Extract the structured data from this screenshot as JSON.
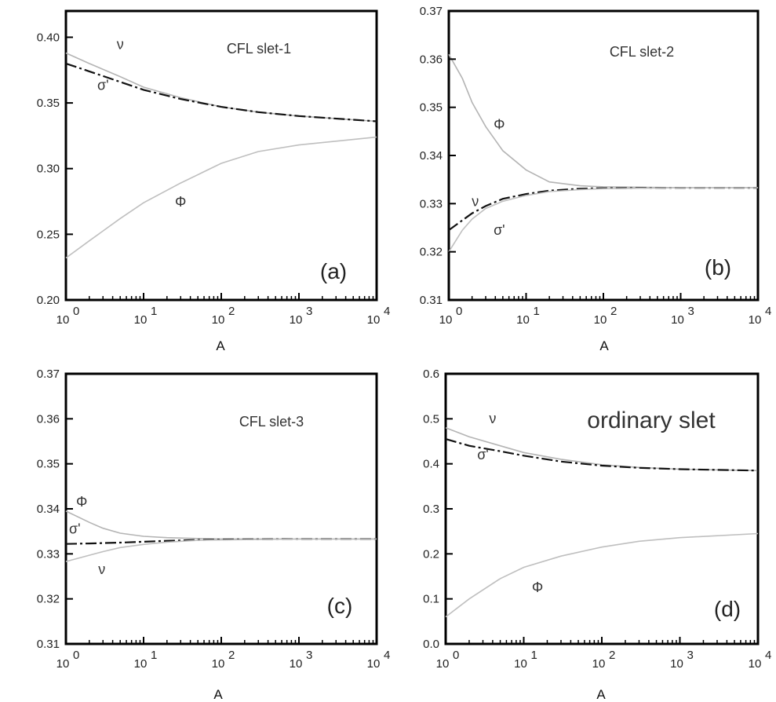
{
  "chart_data": [
    {
      "type": "line",
      "panel_label": "(a)",
      "title": "CFL slet-1",
      "xlabel": "A",
      "ylabel": "",
      "xscale": "log",
      "xlim": [
        1,
        10000
      ],
      "ylim": [
        0.2,
        0.42
      ],
      "x_ticks": [
        1,
        10,
        100,
        1000,
        10000
      ],
      "x_tick_labels": [
        "10",
        "10",
        "10",
        "10",
        "10"
      ],
      "x_tick_exponents": [
        "0",
        "1",
        "2",
        "3",
        "4"
      ],
      "y_ticks": [
        0.2,
        0.25,
        0.3,
        0.35,
        0.4
      ],
      "y_tick_labels": [
        "0.20",
        "0.25",
        "0.30",
        "0.35",
        "0.40"
      ],
      "series": [
        {
          "name": "ν",
          "x": [
            1,
            2,
            5,
            10,
            30,
            100,
            300,
            1000,
            10000
          ],
          "y": [
            0.388,
            0.38,
            0.37,
            0.362,
            0.354,
            0.347,
            0.343,
            0.34,
            0.336
          ]
        },
        {
          "name": "σ'",
          "x": [
            1,
            2,
            5,
            10,
            30,
            100,
            300,
            1000,
            10000
          ],
          "y": [
            0.38,
            0.374,
            0.366,
            0.36,
            0.353,
            0.347,
            0.343,
            0.34,
            0.336
          ]
        },
        {
          "name": "Φ",
          "x": [
            1,
            2,
            5,
            10,
            30,
            100,
            300,
            1000,
            10000
          ],
          "y": [
            0.232,
            0.245,
            0.262,
            0.274,
            0.289,
            0.304,
            0.313,
            0.318,
            0.324
          ]
        }
      ],
      "annotations": [
        {
          "text": "ν",
          "x": 5,
          "y": 0.391
        },
        {
          "text": "σ'",
          "x": 3,
          "y": 0.36
        },
        {
          "text": "Φ",
          "x": 30,
          "y": 0.271
        }
      ]
    },
    {
      "type": "line",
      "panel_label": "(b)",
      "title": "CFL slet-2",
      "xlabel": "A",
      "ylabel": "",
      "xscale": "log",
      "xlim": [
        1,
        10000
      ],
      "ylim": [
        0.31,
        0.37
      ],
      "x_ticks": [
        1,
        10,
        100,
        1000,
        10000
      ],
      "x_tick_labels": [
        "10",
        "10",
        "10",
        "10",
        "10"
      ],
      "x_tick_exponents": [
        "0",
        "1",
        "2",
        "3",
        "4"
      ],
      "y_ticks": [
        0.31,
        0.32,
        0.33,
        0.34,
        0.35,
        0.36,
        0.37
      ],
      "y_tick_labels": [
        "0.31",
        "0.32",
        "0.33",
        "0.34",
        "0.35",
        "0.36",
        "0.37"
      ],
      "series": [
        {
          "name": "Φ",
          "x": [
            1,
            1.5,
            2,
            3,
            5,
            10,
            20,
            50,
            100,
            1000,
            10000
          ],
          "y": [
            0.361,
            0.356,
            0.351,
            0.346,
            0.341,
            0.337,
            0.3345,
            0.3337,
            0.3335,
            0.3333,
            0.3333
          ]
        },
        {
          "name": "ν",
          "x": [
            1,
            2,
            3,
            5,
            10,
            20,
            50,
            100,
            1000,
            10000
          ],
          "y": [
            0.3245,
            0.328,
            0.3295,
            0.331,
            0.332,
            0.3327,
            0.3331,
            0.3332,
            0.3333,
            0.3333
          ]
        },
        {
          "name": "σ'",
          "x": [
            1,
            1.5,
            2,
            3,
            5,
            10,
            20,
            50,
            100,
            1000,
            10000
          ],
          "y": [
            0.32,
            0.3245,
            0.3268,
            0.329,
            0.3305,
            0.3317,
            0.3325,
            0.3329,
            0.3331,
            0.3333,
            0.3333
          ]
        }
      ],
      "annotations": [
        {
          "text": "Φ",
          "x": 4.5,
          "y": 0.3455
        },
        {
          "text": "ν",
          "x": 2.2,
          "y": 0.3295
        },
        {
          "text": "σ'",
          "x": 4.5,
          "y": 0.3235
        }
      ]
    },
    {
      "type": "line",
      "panel_label": "(c)",
      "title": "CFL slet-3",
      "xlabel": "A",
      "ylabel": "",
      "xscale": "log",
      "xlim": [
        1,
        10000
      ],
      "ylim": [
        0.31,
        0.37
      ],
      "x_ticks": [
        1,
        10,
        100,
        1000,
        10000
      ],
      "x_tick_labels": [
        "10",
        "10",
        "10",
        "10",
        "10"
      ],
      "x_tick_exponents": [
        "0",
        "1",
        "2",
        "3",
        "4"
      ],
      "y_ticks": [
        0.31,
        0.32,
        0.33,
        0.34,
        0.35,
        0.36,
        0.37
      ],
      "y_tick_labels": [
        "0.31",
        "0.32",
        "0.33",
        "0.34",
        "0.35",
        "0.36",
        "0.37"
      ],
      "series": [
        {
          "name": "Φ",
          "x": [
            1,
            2,
            3,
            5,
            10,
            20,
            50,
            100,
            1000,
            10000
          ],
          "y": [
            0.3395,
            0.337,
            0.3357,
            0.3346,
            0.3339,
            0.3336,
            0.3334,
            0.3333,
            0.3333,
            0.3333
          ]
        },
        {
          "name": "σ'",
          "x": [
            1,
            2,
            5,
            10,
            20,
            50,
            100,
            1000,
            10000
          ],
          "y": [
            0.3322,
            0.3323,
            0.3325,
            0.3327,
            0.3329,
            0.3331,
            0.3332,
            0.3333,
            0.3333
          ]
        },
        {
          "name": "ν",
          "x": [
            1,
            2,
            3,
            5,
            10,
            20,
            50,
            100,
            1000,
            10000
          ],
          "y": [
            0.3283,
            0.3297,
            0.3305,
            0.3314,
            0.3321,
            0.3326,
            0.333,
            0.3331,
            0.3333,
            0.3333
          ]
        }
      ],
      "annotations": [
        {
          "text": "Φ",
          "x": 1.6,
          "y": 0.3405
        },
        {
          "text": "σ'",
          "x": 1.3,
          "y": 0.3345
        },
        {
          "text": "ν",
          "x": 2.9,
          "y": 0.3255
        }
      ]
    },
    {
      "type": "line",
      "panel_label": "(d)",
      "title": "ordinary slet",
      "xlabel": "A",
      "ylabel": "",
      "xscale": "log",
      "xlim": [
        1,
        10000
      ],
      "ylim": [
        0.0,
        0.6
      ],
      "x_ticks": [
        1,
        10,
        100,
        1000,
        10000
      ],
      "x_tick_labels": [
        "10",
        "10",
        "10",
        "10",
        "10"
      ],
      "x_tick_exponents": [
        "0",
        "1",
        "2",
        "3",
        "4"
      ],
      "y_ticks": [
        0.0,
        0.1,
        0.2,
        0.3,
        0.4,
        0.5,
        0.6
      ],
      "y_tick_labels": [
        "0.0",
        "0.1",
        "0.2",
        "0.3",
        "0.4",
        "0.5",
        "0.6"
      ],
      "series": [
        {
          "name": "ν",
          "x": [
            1,
            2,
            5,
            10,
            30,
            100,
            300,
            1000,
            10000
          ],
          "y": [
            0.48,
            0.46,
            0.44,
            0.425,
            0.41,
            0.398,
            0.392,
            0.388,
            0.385
          ]
        },
        {
          "name": "σ'",
          "x": [
            1,
            2,
            5,
            10,
            30,
            100,
            300,
            1000,
            10000
          ],
          "y": [
            0.455,
            0.44,
            0.428,
            0.418,
            0.405,
            0.396,
            0.391,
            0.388,
            0.385
          ]
        },
        {
          "name": "Φ",
          "x": [
            1,
            2,
            5,
            10,
            30,
            100,
            300,
            1000,
            10000
          ],
          "y": [
            0.06,
            0.1,
            0.145,
            0.17,
            0.195,
            0.215,
            0.228,
            0.236,
            0.245
          ]
        }
      ],
      "annotations": [
        {
          "text": "ν",
          "x": 4,
          "y": 0.49
        },
        {
          "text": "σ'",
          "x": 3,
          "y": 0.41
        },
        {
          "text": "Φ",
          "x": 15,
          "y": 0.115
        }
      ]
    }
  ]
}
